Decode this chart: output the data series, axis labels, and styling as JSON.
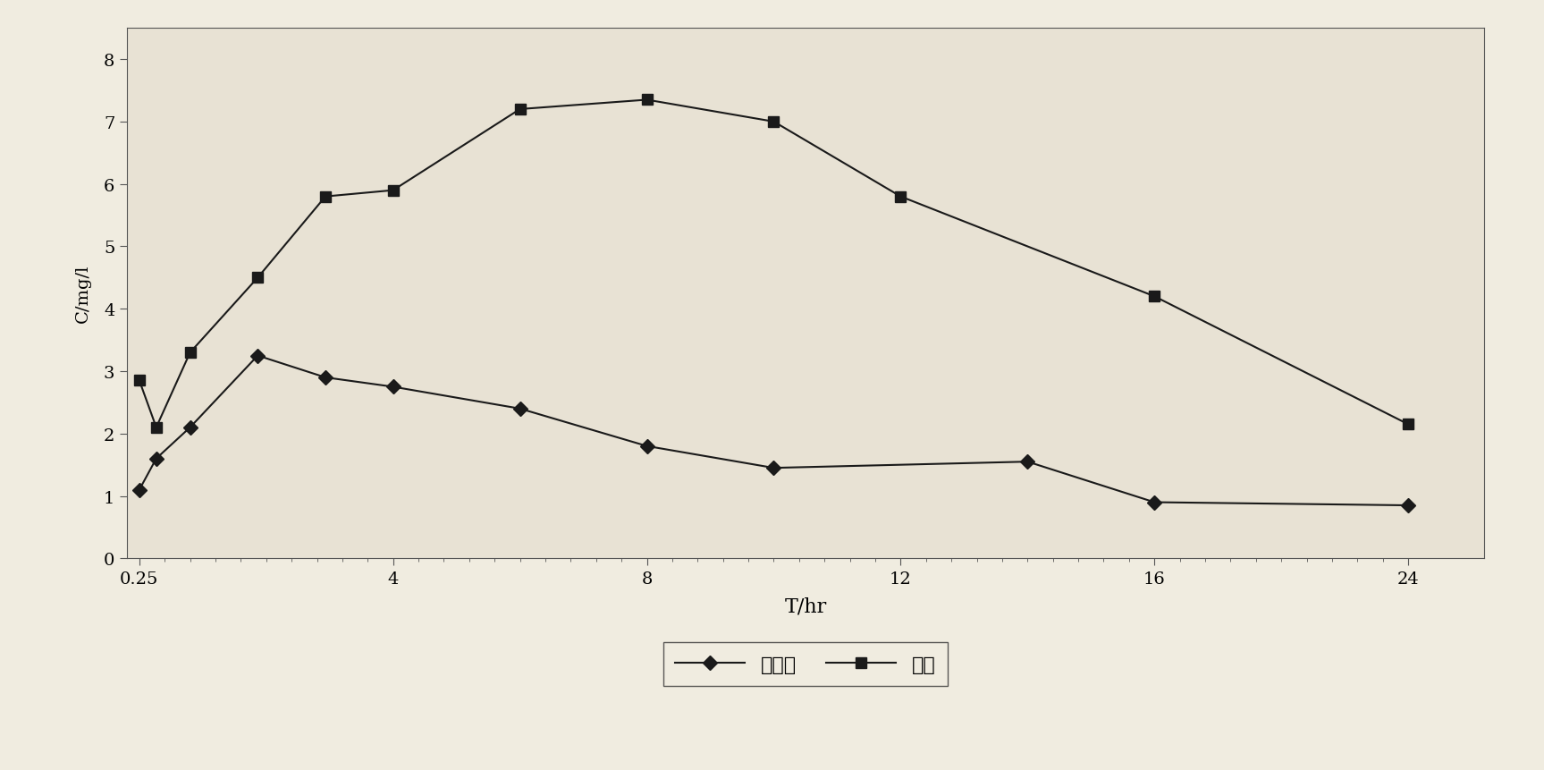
{
  "x_aqueous": [
    0.25,
    0.5,
    1,
    2,
    3,
    4,
    6,
    8,
    10,
    14,
    16,
    24
  ],
  "y_aqueous": [
    1.1,
    1.6,
    2.1,
    3.25,
    2.9,
    2.75,
    2.4,
    1.8,
    1.45,
    1.55,
    0.9,
    0.85
  ],
  "x_microemulsion": [
    0.25,
    0.5,
    1,
    2,
    3,
    4,
    6,
    8,
    10,
    12,
    16,
    24
  ],
  "y_microemulsion": [
    2.85,
    2.1,
    3.3,
    4.5,
    5.8,
    5.9,
    7.2,
    7.35,
    7.0,
    5.8,
    4.2,
    2.15
  ],
  "xlabel": "T/hr",
  "ylabel": "C/mg/l",
  "major_xtick_vals": [
    0.25,
    4,
    8,
    12,
    16,
    24
  ],
  "major_xtick_labels": [
    "0.25",
    "4",
    "8",
    "12",
    "16",
    "24"
  ],
  "yticks": [
    0,
    1,
    2,
    3,
    4,
    5,
    6,
    7,
    8
  ],
  "ylim": [
    0,
    8.5
  ],
  "legend_aqueous": "水溶液",
  "legend_microemulsion": "微乳",
  "line_color": "#1a1a1a",
  "marker_aqueous": "D",
  "marker_microemulsion": "s",
  "markersize": 8,
  "linewidth": 1.5,
  "background_color": "#ede8dc",
  "figure_bg": "#f0ece0",
  "axis_bg": "#e8e2d4"
}
